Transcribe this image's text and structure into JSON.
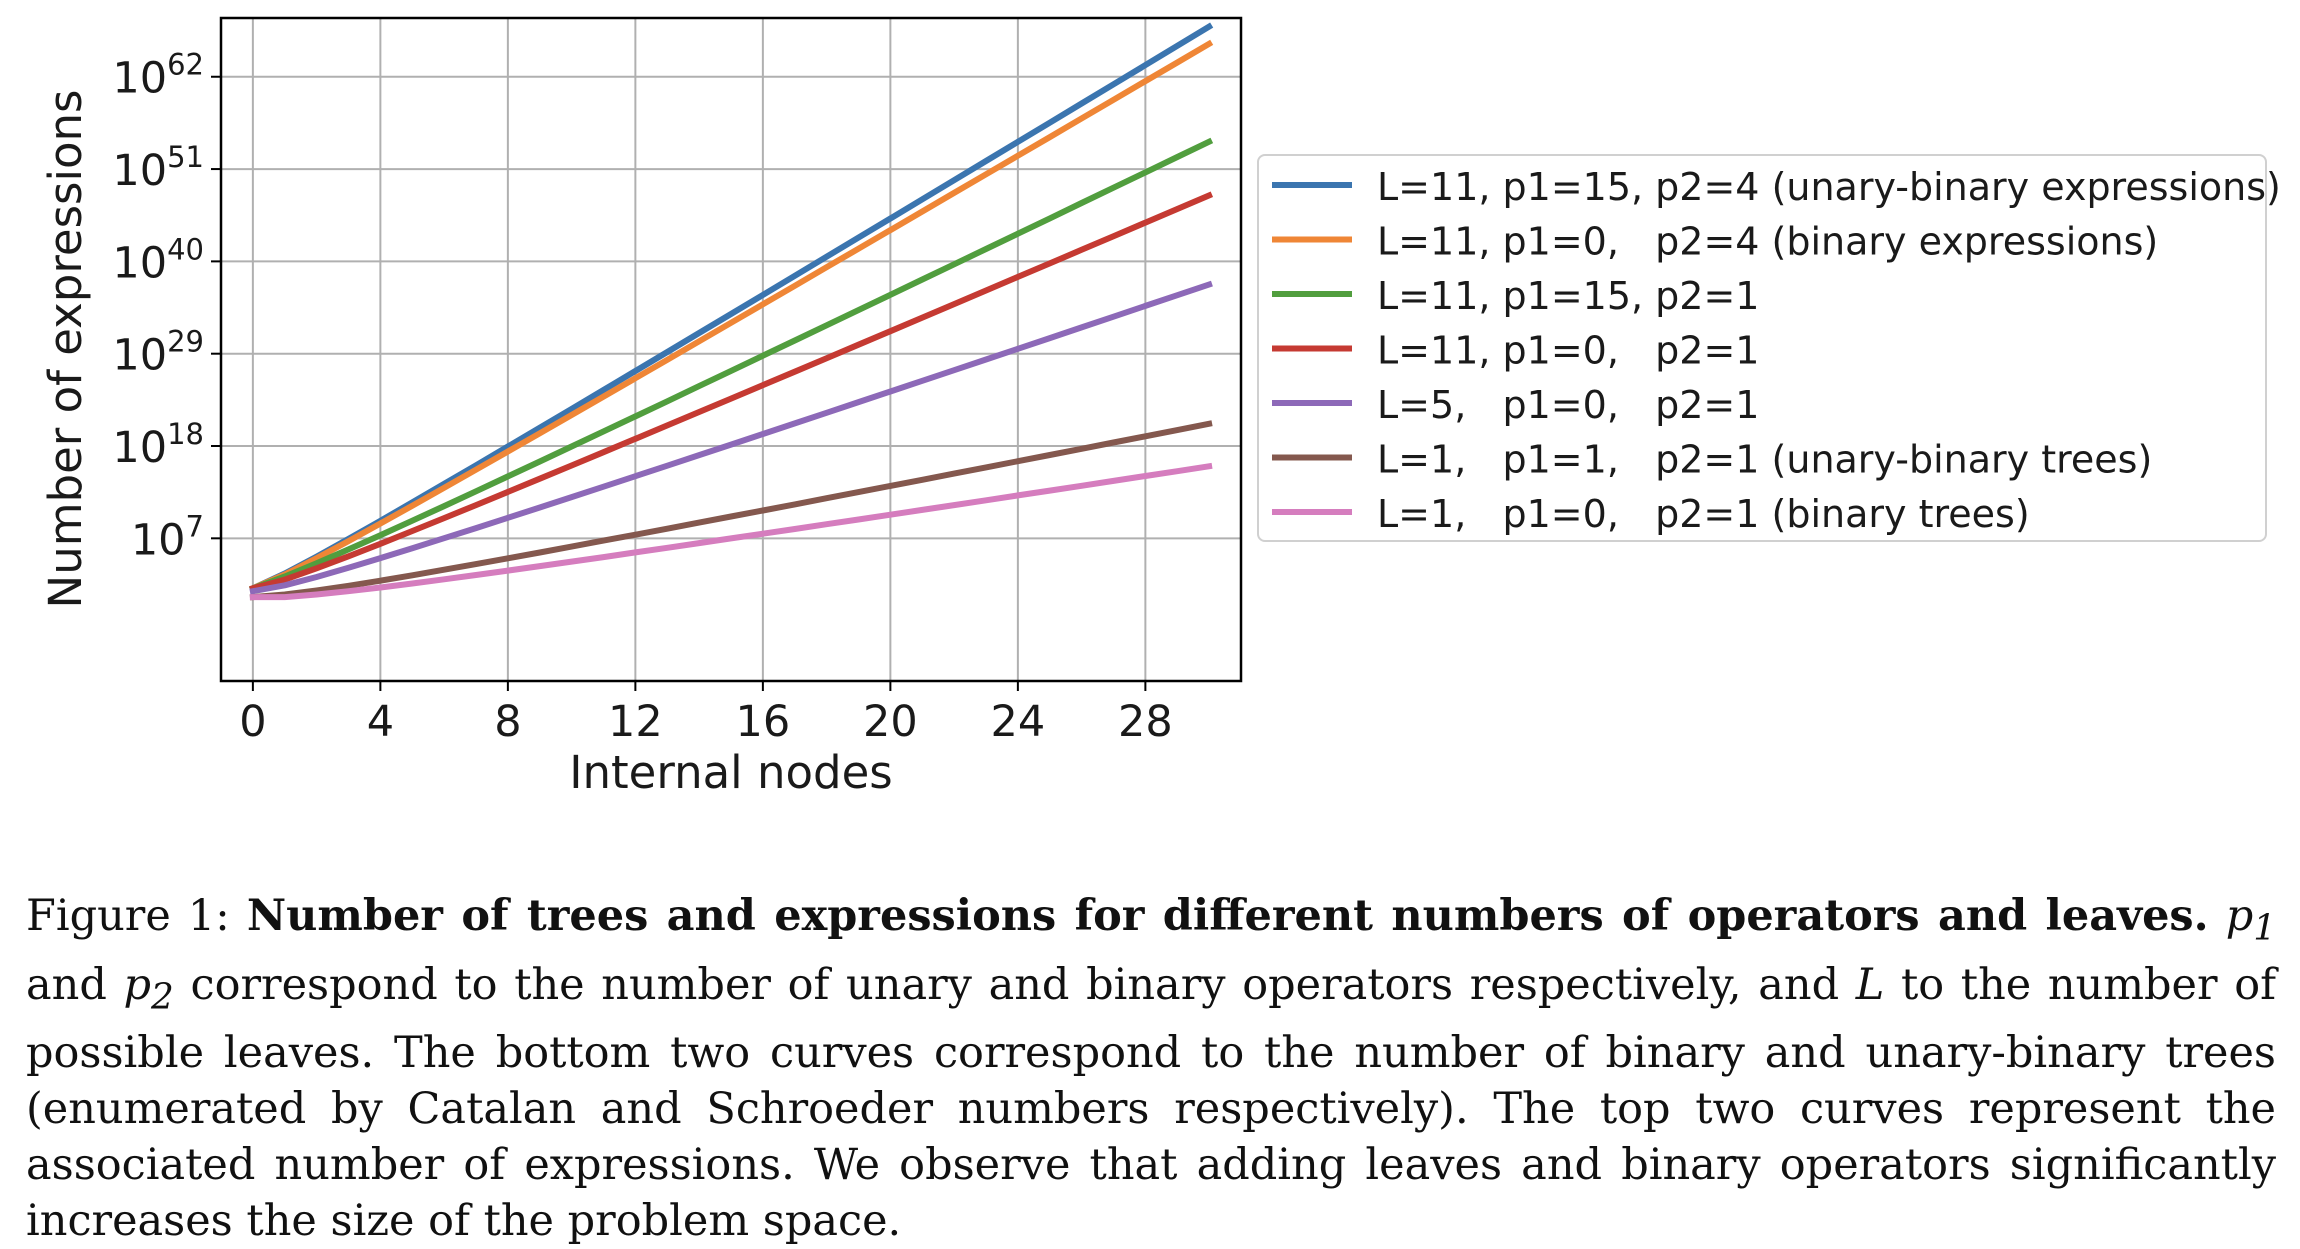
{
  "chart_data": {
    "type": "line",
    "xlabel": "Internal nodes",
    "ylabel": "Number of expressions",
    "xlim": [
      -1,
      31
    ],
    "ylim_log10": [
      -10,
      69
    ],
    "y_scale": "log",
    "grid": true,
    "legend_position": "right",
    "xticks": [
      "0",
      "4",
      "8",
      "12",
      "16",
      "20",
      "24",
      "28"
    ],
    "yticks": [
      {
        "base": "10",
        "exp": "62"
      },
      {
        "base": "10",
        "exp": "51"
      },
      {
        "base": "10",
        "exp": "40"
      },
      {
        "base": "10",
        "exp": "29"
      },
      {
        "base": "10",
        "exp": "18"
      },
      {
        "base": "10",
        "exp": "7"
      }
    ],
    "series": [
      {
        "name": "L=11, p1=15, p2=4 (unary-binary expressions)",
        "color": "#3b75af",
        "L": 11,
        "p1": 15,
        "p2": 4
      },
      {
        "name": "L=11, p1=0,   p2=4 (binary expressions)",
        "color": "#ef8636",
        "L": 11,
        "p1": 0,
        "p2": 4
      },
      {
        "name": "L=11, p1=15, p2=1",
        "color": "#519e3e",
        "L": 11,
        "p1": 15,
        "p2": 1
      },
      {
        "name": "L=11, p1=0,   p2=1",
        "color": "#c53a32",
        "L": 11,
        "p1": 0,
        "p2": 1
      },
      {
        "name": "L=5,   p1=0,   p2=1",
        "color": "#8d69b8",
        "L": 5,
        "p1": 0,
        "p2": 1
      },
      {
        "name": "L=1,   p1=1,   p2=1 (unary-binary trees)",
        "color": "#84584e",
        "L": 1,
        "p1": 1,
        "p2": 1
      },
      {
        "name": "L=1,   p1=0,   p2=1 (binary trees)",
        "color": "#d57dbe",
        "L": 1,
        "p1": 0,
        "p2": 1
      }
    ],
    "x_range": [
      0,
      30
    ]
  },
  "caption": {
    "label": "Figure 1:",
    "bold": "Number of trees and expressions for different numbers of operators and leaves.",
    "p1": "p",
    "p1_sub": "1",
    "and": "and",
    "p2": "p",
    "p2_sub": "2",
    "text1": "correspond to the number of unary and binary operators respectively, and",
    "L": "L",
    "text2": "to the number of possible leaves. The bottom two curves correspond to the number of binary and unary-binary trees (enumerated by Catalan and Schroeder numbers respectively). The top two curves represent the associated number of expressions. We observe that adding leaves and binary operators significantly increases the size of the problem space."
  }
}
